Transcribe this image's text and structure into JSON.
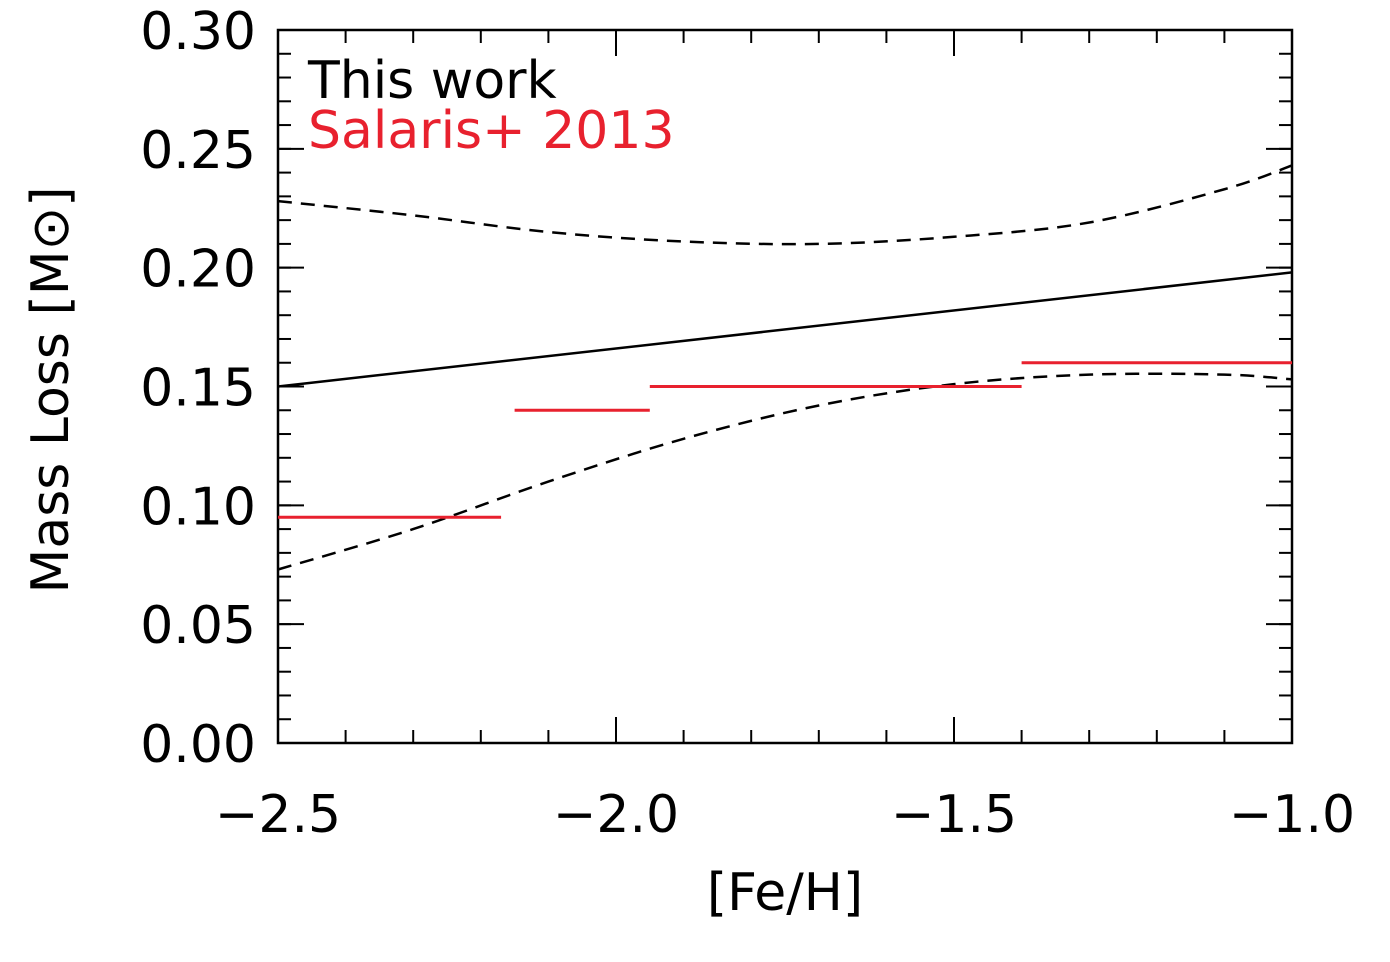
{
  "chart_data": {
    "type": "line",
    "title": "",
    "xlabel": "[Fe/H]",
    "ylabel": "Mass Loss [M⊙]",
    "xlim": [
      -2.5,
      -1.0
    ],
    "ylim": [
      0.0,
      0.3
    ],
    "x_ticks": [
      -2.5,
      -2.0,
      -1.5,
      -1.0
    ],
    "x_tick_labels": [
      "−2.5",
      "−2.0",
      "−1.5",
      "−1.0"
    ],
    "y_ticks": [
      0.0,
      0.05,
      0.1,
      0.15,
      0.2,
      0.25,
      0.3
    ],
    "y_tick_labels": [
      "0.00",
      "0.05",
      "0.10",
      "0.15",
      "0.20",
      "0.25",
      "0.30"
    ],
    "grid": false,
    "legend_position": "top-left",
    "legend": [
      {
        "label": "This work",
        "color": "#000000"
      },
      {
        "label": "Salaris+ 2013",
        "color": "#e8212e"
      }
    ],
    "series": [
      {
        "role": "fit",
        "style": "solid",
        "color": "#000000",
        "x": [
          -2.5,
          -1.0
        ],
        "y": [
          0.15,
          0.198
        ]
      },
      {
        "role": "upper-bound",
        "style": "dashed",
        "color": "#000000",
        "x": [
          -2.5,
          -2.3,
          -2.1,
          -1.9,
          -1.7,
          -1.5,
          -1.3,
          -1.1,
          -1.0
        ],
        "y": [
          0.228,
          0.222,
          0.215,
          0.211,
          0.21,
          0.213,
          0.219,
          0.233,
          0.243
        ]
      },
      {
        "role": "lower-bound",
        "style": "dashed",
        "color": "#000000",
        "x": [
          -2.5,
          -2.3,
          -2.1,
          -1.9,
          -1.7,
          -1.5,
          -1.3,
          -1.1,
          -1.0
        ],
        "y": [
          0.073,
          0.09,
          0.11,
          0.128,
          0.142,
          0.151,
          0.155,
          0.155,
          0.153
        ]
      }
    ],
    "segments": [
      {
        "name": "Salaris+ 2013",
        "color": "#e8212e",
        "x_start": -2.5,
        "x_end": -2.17,
        "y": 0.095
      },
      {
        "name": "Salaris+ 2013",
        "color": "#e8212e",
        "x_start": -2.15,
        "x_end": -1.95,
        "y": 0.14
      },
      {
        "name": "Salaris+ 2013",
        "color": "#e8212e",
        "x_start": -1.95,
        "x_end": -1.4,
        "y": 0.15
      },
      {
        "name": "Salaris+ 2013",
        "color": "#e8212e",
        "x_start": -1.4,
        "x_end": -1.0,
        "y": 0.16
      }
    ]
  }
}
